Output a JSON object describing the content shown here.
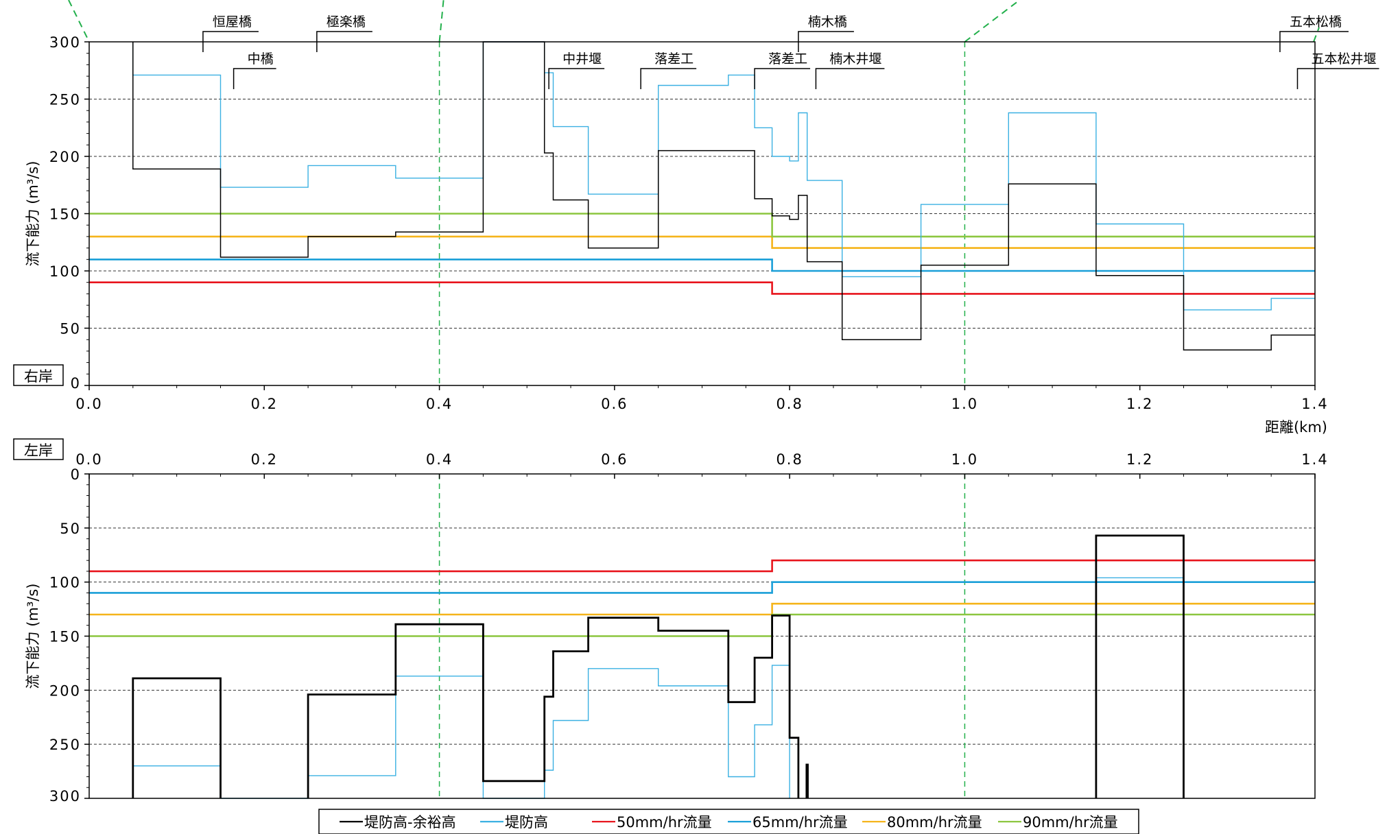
{
  "chart_data": [
    {
      "type": "line",
      "panel": "top",
      "side_label": "右岸",
      "ylabel": "流下能力 (m³/s)",
      "xlabel": "距離(km)",
      "xlim": [
        0,
        1.4
      ],
      "ylim": [
        0,
        300
      ],
      "y_inverted": false,
      "x_ticks": [
        0,
        0.2,
        0.4,
        0.6,
        0.8,
        1.0,
        1.2,
        1.4
      ],
      "x_tick_labels": [
        "0.0",
        "0.2",
        "0.4",
        "0.6",
        "0.8",
        "1.0",
        "1.2",
        "1.4"
      ],
      "y_ticks": [
        0,
        50,
        100,
        150,
        200,
        250,
        300
      ],
      "y_tick_labels": [
        "0",
        "50",
        "100",
        "150",
        "200",
        "250",
        "300"
      ],
      "grid": "horizontal dashed",
      "series": [
        {
          "name": "50mm/hr流量",
          "color": "#e8141c",
          "points": [
            [
              0,
              90
            ],
            [
              0.78,
              90
            ],
            [
              0.78,
              80
            ],
            [
              1.4,
              80
            ]
          ]
        },
        {
          "name": "65mm/hr流量",
          "color": "#1a9fd8",
          "points": [
            [
              0,
              110
            ],
            [
              0.78,
              110
            ],
            [
              0.78,
              100
            ],
            [
              1.4,
              100
            ]
          ]
        },
        {
          "name": "80mm/hr流量",
          "color": "#f5b41a",
          "points": [
            [
              0,
              130
            ],
            [
              0.78,
              130
            ],
            [
              0.78,
              120
            ],
            [
              1.4,
              120
            ]
          ]
        },
        {
          "name": "90mm/hr流量",
          "color": "#8cc63f",
          "points": [
            [
              0,
              150
            ],
            [
              0.78,
              150
            ],
            [
              0.78,
              130
            ],
            [
              1.4,
              130
            ]
          ]
        },
        {
          "name": "堤防高",
          "color": "#3ab0e2",
          "points": [
            [
              0.05,
              300
            ],
            [
              0.05,
              271
            ],
            [
              0.15,
              271
            ],
            [
              0.15,
              173
            ],
            [
              0.25,
              173
            ],
            [
              0.25,
              192
            ],
            [
              0.35,
              192
            ],
            [
              0.35,
              181
            ],
            [
              0.45,
              181
            ],
            [
              0.45,
              300
            ],
            [
              0.52,
              300
            ],
            [
              0.52,
              273
            ],
            [
              0.53,
              273
            ],
            [
              0.53,
              226
            ],
            [
              0.57,
              226
            ],
            [
              0.57,
              167
            ],
            [
              0.65,
              167
            ],
            [
              0.65,
              262
            ],
            [
              0.73,
              262
            ],
            [
              0.73,
              271
            ],
            [
              0.76,
              271
            ],
            [
              0.76,
              225
            ],
            [
              0.78,
              225
            ],
            [
              0.78,
              200
            ],
            [
              0.8,
              200
            ],
            [
              0.8,
              196
            ],
            [
              0.81,
              196
            ],
            [
              0.81,
              238
            ],
            [
              0.82,
              238
            ],
            [
              0.82,
              179
            ],
            [
              0.86,
              179
            ],
            [
              0.86,
              95
            ],
            [
              0.95,
              95
            ],
            [
              0.95,
              158
            ],
            [
              1.05,
              158
            ],
            [
              1.05,
              238
            ],
            [
              1.15,
              238
            ],
            [
              1.15,
              141
            ],
            [
              1.25,
              141
            ],
            [
              1.25,
              66
            ],
            [
              1.35,
              66
            ],
            [
              1.35,
              76
            ],
            [
              1.4,
              76
            ]
          ]
        },
        {
          "name": "堤防高-余裕高",
          "color": "#000000",
          "points": [
            [
              0.05,
              300
            ],
            [
              0.05,
              189
            ],
            [
              0.15,
              189
            ],
            [
              0.15,
              112
            ],
            [
              0.25,
              112
            ],
            [
              0.25,
              130
            ],
            [
              0.35,
              130
            ],
            [
              0.35,
              134
            ],
            [
              0.45,
              134
            ],
            [
              0.45,
              300
            ],
            [
              0.52,
              300
            ],
            [
              0.52,
              203
            ],
            [
              0.53,
              203
            ],
            [
              0.53,
              162
            ],
            [
              0.57,
              162
            ],
            [
              0.57,
              120
            ],
            [
              0.65,
              120
            ],
            [
              0.65,
              205
            ],
            [
              0.76,
              205
            ],
            [
              0.76,
              163
            ],
            [
              0.78,
              163
            ],
            [
              0.78,
              148
            ],
            [
              0.8,
              148
            ],
            [
              0.8,
              145
            ],
            [
              0.81,
              145
            ],
            [
              0.81,
              166
            ],
            [
              0.82,
              166
            ],
            [
              0.82,
              108
            ],
            [
              0.86,
              108
            ],
            [
              0.86,
              40
            ],
            [
              0.95,
              40
            ],
            [
              0.95,
              105
            ],
            [
              1.05,
              105
            ],
            [
              1.05,
              176
            ],
            [
              1.15,
              176
            ],
            [
              1.15,
              96
            ],
            [
              1.25,
              96
            ],
            [
              1.25,
              31
            ],
            [
              1.35,
              31
            ],
            [
              1.35,
              44
            ],
            [
              1.4,
              44
            ]
          ]
        }
      ],
      "structures": [
        {
          "name": "恒屋橋",
          "x": 0.13,
          "level": "high"
        },
        {
          "name": "中橋",
          "x": 0.165,
          "level": "low"
        },
        {
          "name": "極楽橋",
          "x": 0.26,
          "level": "high"
        },
        {
          "name": "中井堰",
          "x": 0.525,
          "level": "low"
        },
        {
          "name": "落差工",
          "x": 0.63,
          "level": "low"
        },
        {
          "name": "落差工",
          "x": 0.76,
          "level": "low"
        },
        {
          "name": "楠木橋",
          "x": 0.81,
          "level": "high"
        },
        {
          "name": "楠木井堰",
          "x": 0.83,
          "level": "low"
        },
        {
          "name": "五本松橋",
          "x": 1.36,
          "level": "high"
        },
        {
          "name": "五本松井堰",
          "x": 1.38,
          "level": "low"
        }
      ]
    },
    {
      "type": "line",
      "panel": "bottom",
      "side_label": "左岸",
      "ylabel": "流下能力 (m³/s)",
      "xlim": [
        0,
        1.4
      ],
      "ylim": [
        0,
        300
      ],
      "y_inverted": true,
      "x_ticks": [
        0,
        0.2,
        0.4,
        0.6,
        0.8,
        1.0,
        1.2,
        1.4
      ],
      "x_tick_labels": [
        "0.0",
        "0.2",
        "0.4",
        "0.6",
        "0.8",
        "1.0",
        "1.2",
        "1.4"
      ],
      "y_ticks": [
        0,
        50,
        100,
        150,
        200,
        250,
        300
      ],
      "y_tick_labels": [
        "0",
        "50",
        "100",
        "150",
        "200",
        "250",
        "300"
      ],
      "grid": "horizontal dashed",
      "series": [
        {
          "name": "50mm/hr流量",
          "color": "#e8141c",
          "points": [
            [
              0,
              90
            ],
            [
              0.78,
              90
            ],
            [
              0.78,
              80
            ],
            [
              1.4,
              80
            ]
          ]
        },
        {
          "name": "65mm/hr流量",
          "color": "#1a9fd8",
          "points": [
            [
              0,
              110
            ],
            [
              0.78,
              110
            ],
            [
              0.78,
              100
            ],
            [
              1.4,
              100
            ]
          ]
        },
        {
          "name": "80mm/hr流量",
          "color": "#f5b41a",
          "points": [
            [
              0,
              130
            ],
            [
              0.78,
              130
            ],
            [
              0.78,
              120
            ],
            [
              1.4,
              120
            ]
          ]
        },
        {
          "name": "90mm/hr流量",
          "color": "#8cc63f",
          "points": [
            [
              0,
              150
            ],
            [
              0.78,
              150
            ],
            [
              0.78,
              130
            ],
            [
              1.4,
              130
            ]
          ]
        },
        {
          "name": "堤防高",
          "color": "#3ab0e2",
          "points": [
            [
              0.05,
              300
            ],
            [
              0.05,
              270
            ],
            [
              0.15,
              270
            ],
            [
              0.15,
              300
            ],
            [
              0.25,
              300
            ],
            [
              0.25,
              279
            ],
            [
              0.35,
              279
            ],
            [
              0.35,
              187
            ],
            [
              0.45,
              187
            ],
            [
              0.45,
              300
            ],
            [
              0.52,
              300
            ],
            [
              0.52,
              274
            ],
            [
              0.53,
              274
            ],
            [
              0.53,
              228
            ],
            [
              0.57,
              228
            ],
            [
              0.57,
              180
            ],
            [
              0.65,
              180
            ],
            [
              0.65,
              196
            ],
            [
              0.73,
              196
            ],
            [
              0.73,
              280
            ],
            [
              0.76,
              280
            ],
            [
              0.76,
              232
            ],
            [
              0.78,
              232
            ],
            [
              0.78,
              177
            ],
            [
              0.8,
              177
            ],
            [
              0.8,
              300
            ]
          ]
        },
        {
          "name": "堤防高",
          "color": "#3ab0e2",
          "points": [
            [
              1.15,
              300
            ],
            [
              1.15,
              96
            ],
            [
              1.25,
              96
            ],
            [
              1.25,
              300
            ]
          ]
        },
        {
          "name": "堤防高-余裕高",
          "color": "#000000",
          "points": [
            [
              0.05,
              300
            ],
            [
              0.05,
              189
            ],
            [
              0.15,
              189
            ],
            [
              0.15,
              300
            ]
          ]
        },
        {
          "name": "堤防高-余裕高",
          "color": "#000000",
          "points": [
            [
              0.25,
              300
            ],
            [
              0.25,
              204
            ],
            [
              0.35,
              204
            ],
            [
              0.35,
              139
            ],
            [
              0.45,
              139
            ],
            [
              0.45,
              284
            ],
            [
              0.52,
              284
            ],
            [
              0.52,
              206
            ],
            [
              0.53,
              206
            ],
            [
              0.53,
              164
            ],
            [
              0.57,
              164
            ],
            [
              0.57,
              133
            ],
            [
              0.65,
              133
            ],
            [
              0.65,
              145
            ],
            [
              0.73,
              145
            ],
            [
              0.73,
              211
            ],
            [
              0.76,
              211
            ],
            [
              0.76,
              170
            ],
            [
              0.78,
              170
            ],
            [
              0.78,
              131
            ],
            [
              0.8,
              131
            ],
            [
              0.8,
              244
            ],
            [
              0.81,
              244
            ],
            [
              0.81,
              300
            ]
          ]
        },
        {
          "name": "堤防高-余裕高",
          "color": "#000000",
          "points": [
            [
              0.82,
              268
            ],
            [
              0.82,
              300
            ]
          ]
        },
        {
          "name": "堤防高-余裕高",
          "color": "#000000",
          "points": [
            [
              1.15,
              300
            ],
            [
              1.15,
              57
            ],
            [
              1.25,
              57
            ],
            [
              1.25,
              300
            ]
          ]
        }
      ]
    }
  ],
  "legend": {
    "items": [
      {
        "label": "堤防高-余裕高",
        "color": "#000000"
      },
      {
        "label": "堤防高",
        "color": "#3ab0e2"
      },
      {
        "label": "50mm/hr流量",
        "color": "#e8141c"
      },
      {
        "label": "65mm/hr流量",
        "color": "#1a9fd8"
      },
      {
        "label": "80mm/hr流量",
        "color": "#f5b41a"
      },
      {
        "label": "90mm/hr流量",
        "color": "#8cc63f"
      }
    ]
  },
  "reference_lines": {
    "color": "#22b04b",
    "x_values": [
      0.4,
      1.0
    ]
  }
}
